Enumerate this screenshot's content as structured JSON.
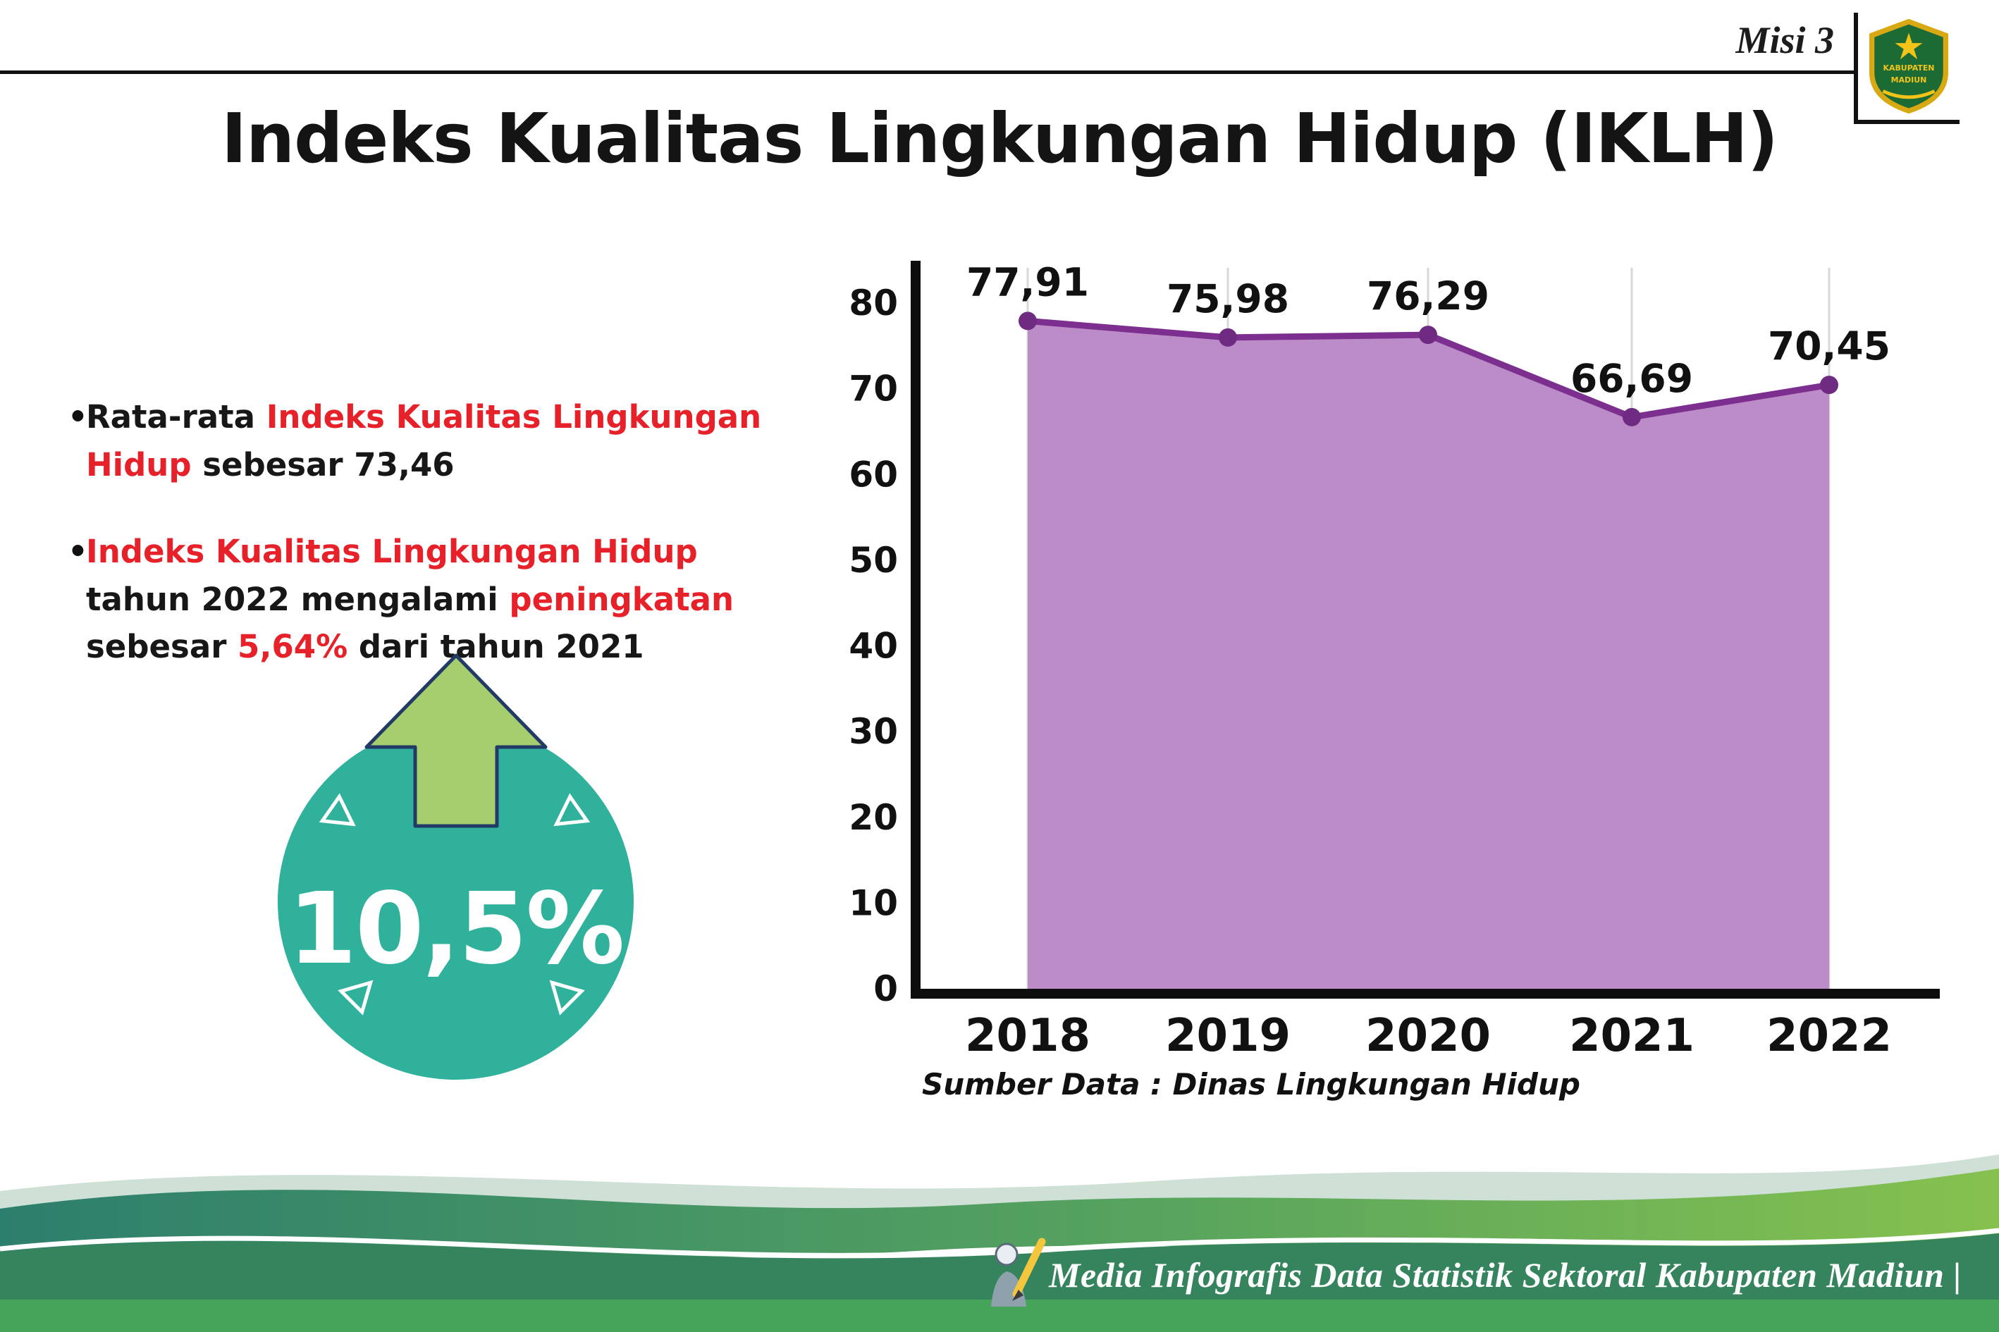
{
  "meta": {
    "misi_label": "Misi 3"
  },
  "logo": {
    "name": "Kabupaten Madiun",
    "text_top": "KABUPATEN",
    "text_bottom": "MADIUN"
  },
  "title": "Indeks Kualitas Lingkungan Hidup (IKLH)",
  "notes": {
    "bullets": [
      {
        "segments": [
          {
            "t": "Rata-rata ",
            "c": "k"
          },
          {
            "t": "Indeks Kualitas Lingkungan Hidup",
            "c": "r"
          },
          {
            "t": " sebesar 73,46",
            "c": "k"
          }
        ]
      },
      {
        "segments": [
          {
            "t": "Indeks Kualitas Lingkungan Hidup",
            "c": "r"
          },
          {
            "t": " tahun 2022 mengalami ",
            "c": "k"
          },
          {
            "t": "peningkatan",
            "c": "r"
          },
          {
            "t": " sebesar ",
            "c": "k"
          },
          {
            "t": "5,64%",
            "c": "r"
          },
          {
            "t": " dari tahun 2021",
            "c": "k"
          }
        ]
      }
    ]
  },
  "badge": {
    "value": "10,5%",
    "circle_color": "#2fb19c",
    "arrow_color": "#a6cd6e"
  },
  "chart_data": {
    "type": "area",
    "title": "",
    "categories": [
      "2018",
      "2019",
      "2020",
      "2021",
      "2022"
    ],
    "values": [
      77.91,
      75.98,
      76.29,
      66.69,
      70.45
    ],
    "value_labels": [
      "77,91",
      "75,98",
      "76,29",
      "66,69",
      "70,45"
    ],
    "ylim": [
      0,
      80
    ],
    "yticks": [
      0,
      10,
      20,
      30,
      40,
      50,
      60,
      70,
      80
    ],
    "grid": "vertical-light",
    "legend": "none",
    "fill_color": "#bc8cc9",
    "line_color": "#7c2f8f",
    "point_color": "#6f2a82",
    "source": "Sumber Data : Dinas Lingkungan Hidup"
  },
  "footer": {
    "text": "Media Infografis Data Statistik Sektoral Kabupaten Madiun |"
  }
}
